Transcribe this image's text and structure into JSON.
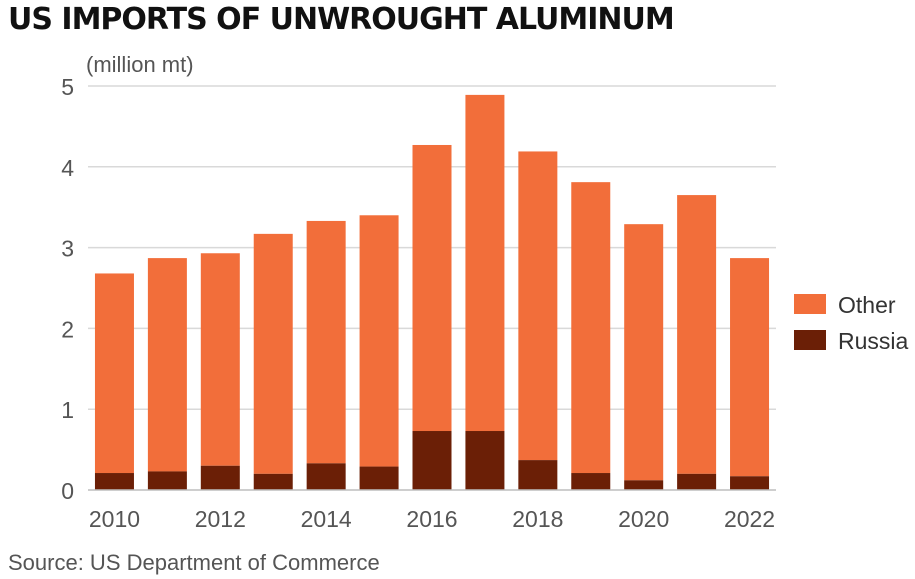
{
  "title": "US IMPORTS OF UNWROUGHT ALUMINUM",
  "unit_label": "(million mt)",
  "source": "Source: US Department of Commerce",
  "colors": {
    "other": "#f26e3a",
    "russia": "#6b1f06",
    "grid": "#d9d9d9",
    "axis_text": "#555555"
  },
  "chart_data": {
    "type": "bar",
    "stacked": true,
    "categories": [
      "2010",
      "2011",
      "2012",
      "2013",
      "2014",
      "2015",
      "2016",
      "2017",
      "2018",
      "2019",
      "2020",
      "2021",
      "2022"
    ],
    "x_tick_labels": [
      "2010",
      "",
      "2012",
      "",
      "2014",
      "",
      "2016",
      "",
      "2018",
      "",
      "2020",
      "",
      "2022"
    ],
    "series": [
      {
        "name": "Russia",
        "values": [
          0.21,
          0.23,
          0.3,
          0.2,
          0.33,
          0.29,
          0.73,
          0.73,
          0.37,
          0.21,
          0.12,
          0.2,
          0.17
        ]
      },
      {
        "name": "Other",
        "values": [
          2.47,
          2.64,
          2.63,
          2.97,
          3.0,
          3.11,
          3.54,
          4.16,
          3.82,
          3.6,
          3.17,
          3.45,
          2.7
        ]
      }
    ],
    "totals": [
      2.68,
      2.87,
      2.93,
      3.17,
      3.33,
      3.4,
      4.27,
      4.89,
      4.19,
      3.81,
      3.29,
      3.65,
      2.87
    ],
    "ylim": [
      0,
      5
    ],
    "y_ticks": [
      0,
      1,
      2,
      3,
      4,
      5
    ],
    "grid": true,
    "legend": [
      "Other",
      "Russia"
    ],
    "legend_position": "right"
  }
}
